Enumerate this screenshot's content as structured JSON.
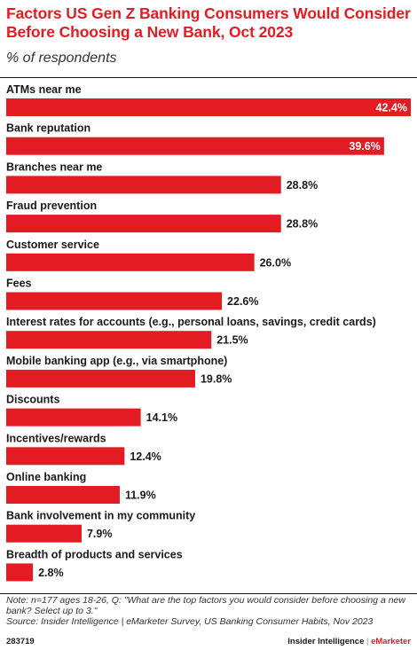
{
  "title": "Factors US Gen Z Banking Consumers Would Consider Before Choosing a New Bank, Oct 2023",
  "subtitle": "% of respondents",
  "note": "Note: n=177 ages 18-26, Q: \"What are the top factors you would consider before choosing a new bank? Select up to 3.\"",
  "source": "Source: Insider Intelligence | eMarketer Survey, US Banking Consumer Habits, Nov 2023",
  "chart_id": "283719",
  "brand": {
    "company": "Insider Intelligence",
    "separator": "|",
    "product": "eMarketer"
  },
  "colors": {
    "bar": "#e31b23",
    "title": "#e31b23",
    "label_inside": "#ffffff",
    "label_outside": "#1a1a1a"
  },
  "chart_data": {
    "type": "bar",
    "orientation": "horizontal",
    "categories": [
      "ATMs near me",
      "Bank reputation",
      "Branches near me",
      "Fraud prevention",
      "Customer service",
      "Fees",
      "Interest rates for accounts (e.g., personal loans, savings, credit cards)",
      "Mobile banking app (e.g., via smartphone)",
      "Discounts",
      "Incentives/rewards",
      "Online banking",
      "Bank involvement in my community",
      "Breadth of products and services"
    ],
    "values": [
      42.4,
      39.6,
      28.8,
      28.8,
      26.0,
      22.6,
      21.5,
      19.8,
      14.1,
      12.4,
      11.9,
      7.9,
      2.8
    ],
    "value_labels": [
      "42.4%",
      "39.6%",
      "28.8%",
      "28.8%",
      "26.0%",
      "22.6%",
      "21.5%",
      "19.8%",
      "14.1%",
      "12.4%",
      "11.9%",
      "7.9%",
      "2.8%"
    ],
    "xlim": [
      0,
      42.4
    ],
    "grid": false,
    "legend": "none"
  }
}
